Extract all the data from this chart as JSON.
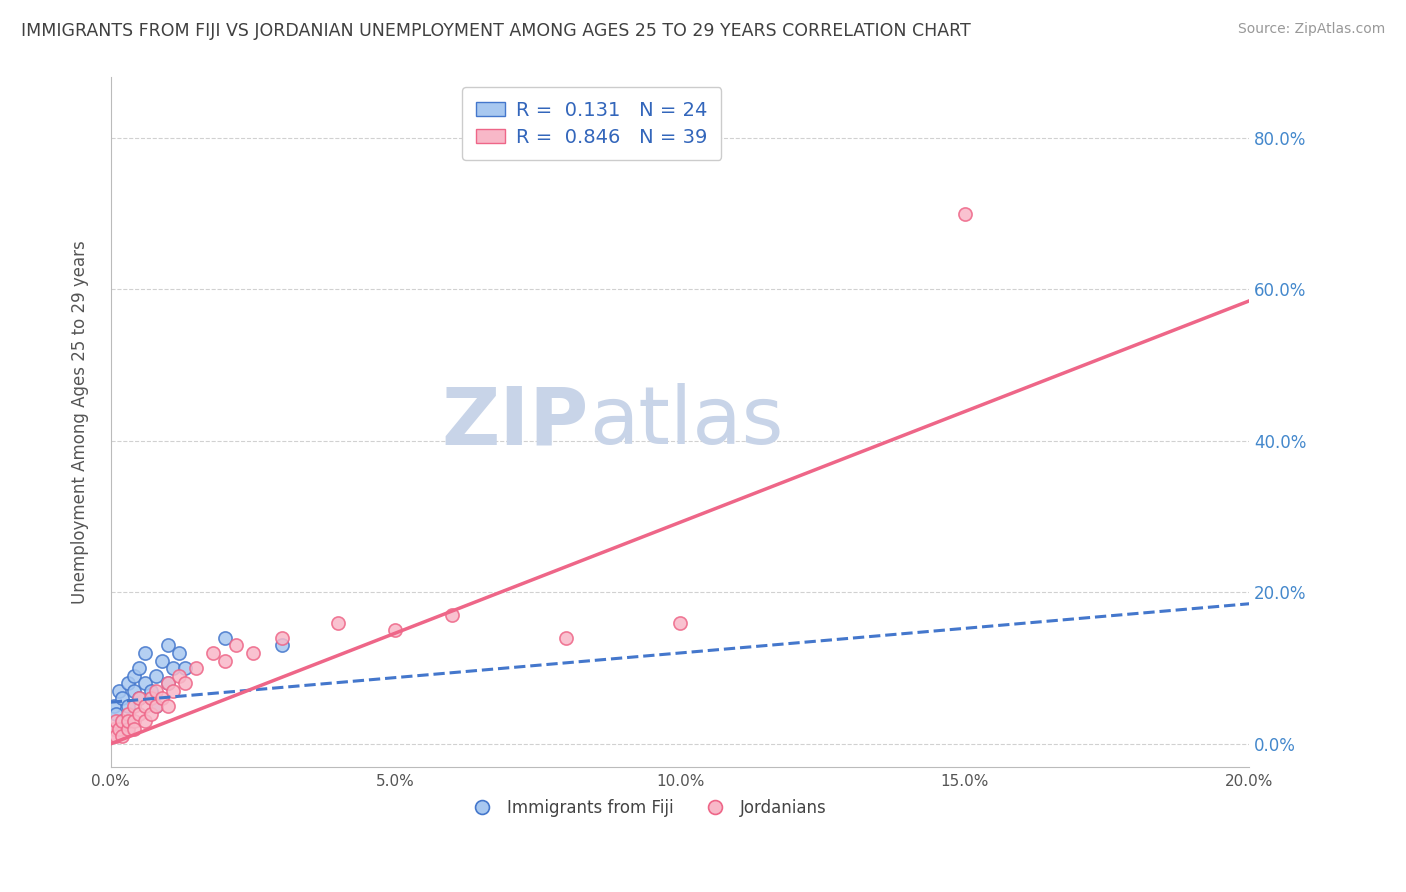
{
  "title": "IMMIGRANTS FROM FIJI VS JORDANIAN UNEMPLOYMENT AMONG AGES 25 TO 29 YEARS CORRELATION CHART",
  "source": "Source: ZipAtlas.com",
  "ylabel": "Unemployment Among Ages 25 to 29 years",
  "xmin": 0.0,
  "xmax": 0.2,
  "ymin": -0.03,
  "ymax": 0.88,
  "yticks": [
    0.0,
    0.2,
    0.4,
    0.6,
    0.8
  ],
  "ytick_labels": [
    "0.0%",
    "20.0%",
    "40.0%",
    "60.0%",
    "80.0%"
  ],
  "xticks": [
    0.0,
    0.05,
    0.1,
    0.15,
    0.2
  ],
  "xtick_labels": [
    "0.0%",
    "5.0%",
    "10.0%",
    "15.0%",
    "20.0%"
  ],
  "legend_R1": "0.131",
  "legend_N1": "24",
  "legend_R2": "0.846",
  "legend_N2": "39",
  "color_fiji": "#a8c8f0",
  "color_jordan": "#f8b8c8",
  "color_fiji_line": "#4477cc",
  "color_jordan_line": "#ee6688",
  "color_title": "#404040",
  "color_source": "#999999",
  "color_watermark": "#c8d4e8",
  "watermark_zip": "ZIP",
  "watermark_atlas": "atlas",
  "legend_label1": "Immigrants from Fiji",
  "legend_label2": "Jordanians",
  "fiji_x": [
    0.0005,
    0.001,
    0.0015,
    0.002,
    0.002,
    0.003,
    0.003,
    0.004,
    0.004,
    0.005,
    0.005,
    0.006,
    0.006,
    0.007,
    0.008,
    0.008,
    0.009,
    0.01,
    0.01,
    0.011,
    0.012,
    0.013,
    0.02,
    0.03
  ],
  "fiji_y": [
    0.05,
    0.04,
    0.07,
    0.03,
    0.06,
    0.08,
    0.05,
    0.09,
    0.07,
    0.1,
    0.06,
    0.08,
    0.12,
    0.07,
    0.09,
    0.05,
    0.11,
    0.13,
    0.08,
    0.1,
    0.12,
    0.1,
    0.14,
    0.13
  ],
  "jordan_x": [
    0.0003,
    0.0005,
    0.001,
    0.001,
    0.0015,
    0.002,
    0.002,
    0.003,
    0.003,
    0.003,
    0.004,
    0.004,
    0.004,
    0.005,
    0.005,
    0.006,
    0.006,
    0.007,
    0.007,
    0.008,
    0.008,
    0.009,
    0.01,
    0.01,
    0.011,
    0.012,
    0.013,
    0.015,
    0.018,
    0.02,
    0.022,
    0.025,
    0.03,
    0.04,
    0.05,
    0.06,
    0.08,
    0.1,
    0.15
  ],
  "jordan_y": [
    0.01,
    0.02,
    0.01,
    0.03,
    0.02,
    0.03,
    0.01,
    0.04,
    0.02,
    0.03,
    0.05,
    0.03,
    0.02,
    0.04,
    0.06,
    0.05,
    0.03,
    0.06,
    0.04,
    0.05,
    0.07,
    0.06,
    0.08,
    0.05,
    0.07,
    0.09,
    0.08,
    0.1,
    0.12,
    0.11,
    0.13,
    0.12,
    0.14,
    0.16,
    0.15,
    0.17,
    0.14,
    0.16,
    0.7
  ],
  "fiji_trend_x": [
    0.0,
    0.2
  ],
  "fiji_trend_y": [
    0.055,
    0.185
  ],
  "jordan_trend_x": [
    0.0,
    0.2
  ],
  "jordan_trend_y": [
    0.0,
    0.585
  ]
}
